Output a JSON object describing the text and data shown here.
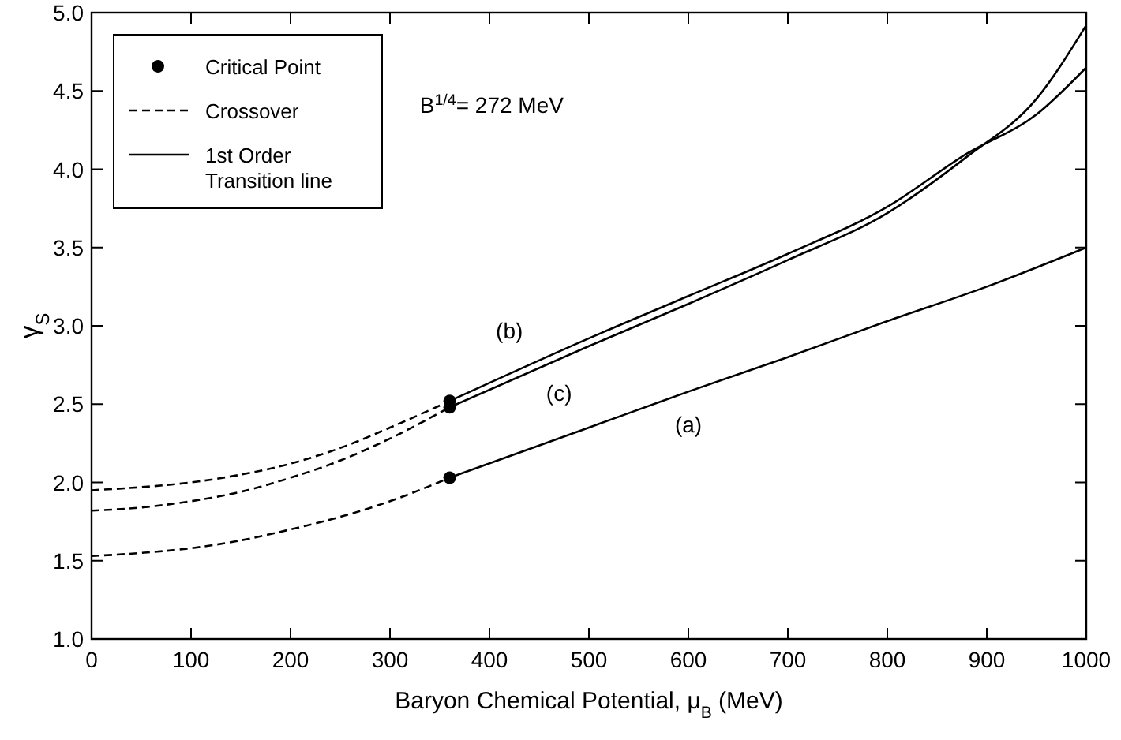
{
  "chart_data": {
    "type": "line",
    "xlabel": "Baryon Chemical Potential, μ$_{B}$ (MeV)",
    "ylabel": "γ$_{S}$",
    "xlim": [
      0,
      1000
    ],
    "xticks": [
      0,
      100,
      200,
      300,
      400,
      500,
      600,
      700,
      800,
      900,
      1000
    ],
    "ylim": [
      1,
      5
    ],
    "yticks": [
      {
        "value": 1,
        "label": "1.0"
      },
      {
        "value": 1.5,
        "label": "1.5"
      },
      {
        "value": 2,
        "label": "2.0"
      },
      {
        "value": 2.5,
        "label": "2.5"
      },
      {
        "value": 3,
        "label": "3.0"
      },
      {
        "value": 3.5,
        "label": "3.5"
      },
      {
        "value": 4,
        "label": "4.0"
      },
      {
        "value": 4.5,
        "label": "4.5"
      },
      {
        "value": 5,
        "label": "5.0"
      }
    ],
    "grid": false,
    "legend": "top left",
    "series": [
      {
        "name": "Critical Point",
        "type": "scatter",
        "marker": "circle",
        "color": "#000000",
        "x": [
          360,
          360,
          360
        ],
        "values": [
          2.03,
          2.52,
          2.48
        ]
      },
      {
        "name": "Crossover",
        "line_style": "dashed",
        "marker": "none",
        "color": "#000000",
        "x": [
          0,
          50,
          100,
          150,
          200,
          250,
          300,
          360
        ],
        "values": [
          1.53,
          1.55,
          1.58,
          1.63,
          1.7,
          1.78,
          1.88,
          2.03
        ]
      },
      {
        "line_style": "dashed",
        "marker": "none",
        "color": "#000000",
        "x": [
          0,
          50,
          100,
          150,
          200,
          250,
          300,
          360
        ],
        "values": [
          1.95,
          1.97,
          2.0,
          2.05,
          2.12,
          2.22,
          2.35,
          2.52
        ]
      },
      {
        "line_style": "dashed",
        "marker": "none",
        "color": "#000000",
        "x": [
          0,
          50,
          100,
          150,
          200,
          250,
          300,
          360
        ],
        "values": [
          1.82,
          1.84,
          1.88,
          1.94,
          2.03,
          2.14,
          2.28,
          2.48
        ]
      },
      {
        "name": "1st Order Transition line",
        "line_style": "solid",
        "marker": "none",
        "color": "#000000",
        "x": [
          360,
          500,
          600,
          700,
          800,
          900,
          1000
        ],
        "values": [
          2.03,
          2.35,
          2.58,
          2.8,
          3.03,
          3.25,
          3.5
        ]
      },
      {
        "line_style": "solid",
        "marker": "none",
        "color": "#000000",
        "x": [
          360,
          500,
          600,
          700,
          800,
          880,
          950,
          1000
        ],
        "values": [
          2.52,
          2.92,
          3.19,
          3.46,
          3.76,
          4.1,
          4.35,
          4.65
        ]
      },
      {
        "line_style": "solid",
        "marker": "none",
        "color": "#000000",
        "x": [
          360,
          500,
          600,
          700,
          800,
          880,
          950,
          1000
        ],
        "values": [
          2.48,
          2.87,
          3.14,
          3.42,
          3.72,
          4.08,
          4.45,
          4.92
        ]
      }
    ],
    "annotations": [
      "(a)",
      "(b)",
      "(c)",
      "B$^{1/4}$= 272 MeV"
    ]
  }
}
